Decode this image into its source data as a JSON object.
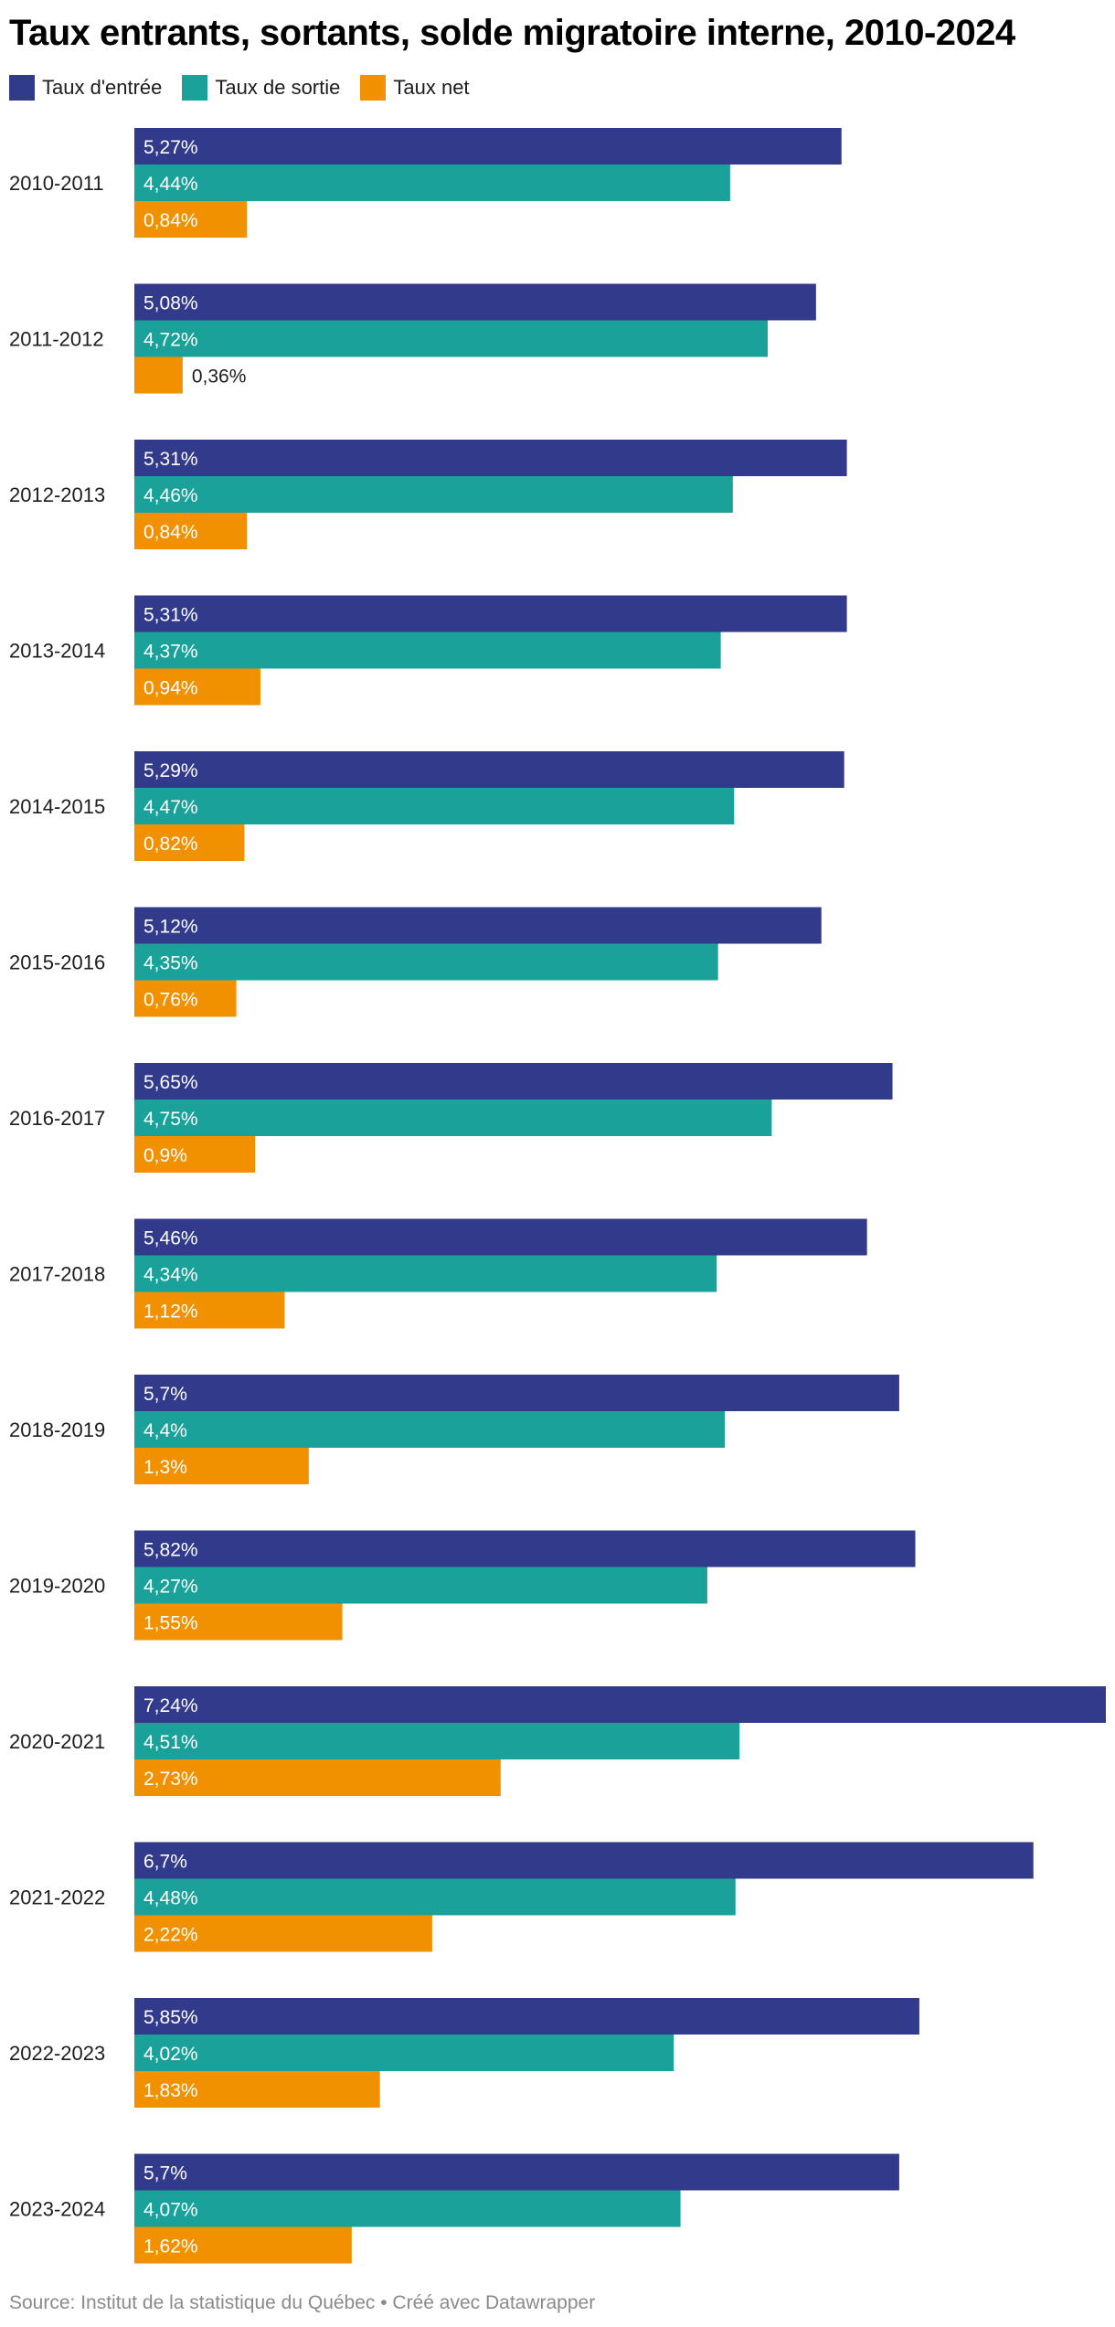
{
  "chart_data": {
    "type": "bar",
    "orientation": "horizontal",
    "title": "Taux entrants, sortants, solde migratoire interne, 2010-2024",
    "categories": [
      "2010-2011",
      "2011-2012",
      "2012-2013",
      "2013-2014",
      "2014-2015",
      "2015-2016",
      "2016-2017",
      "2017-2018",
      "2018-2019",
      "2019-2020",
      "2020-2021",
      "2021-2022",
      "2022-2023",
      "2023-2024"
    ],
    "series": [
      {
        "name": "Taux d'entrée",
        "color": "#323a8c",
        "values": [
          5.27,
          5.08,
          5.31,
          5.31,
          5.29,
          5.12,
          5.65,
          5.46,
          5.7,
          5.82,
          7.24,
          6.7,
          5.85,
          5.7
        ],
        "labels": [
          "5,27%",
          "5,08%",
          "5,31%",
          "5,31%",
          "5,29%",
          "5,12%",
          "5,65%",
          "5,46%",
          "5,7%",
          "5,82%",
          "7,24%",
          "6,7%",
          "5,85%",
          "5,7%"
        ]
      },
      {
        "name": "Taux de sortie",
        "color": "#1aa19a",
        "values": [
          4.44,
          4.72,
          4.46,
          4.37,
          4.47,
          4.35,
          4.75,
          4.34,
          4.4,
          4.27,
          4.51,
          4.48,
          4.02,
          4.07
        ],
        "labels": [
          "4,44%",
          "4,72%",
          "4,46%",
          "4,37%",
          "4,47%",
          "4,35%",
          "4,75%",
          "4,34%",
          "4,4%",
          "4,27%",
          "4,51%",
          "4,48%",
          "4,02%",
          "4,07%"
        ]
      },
      {
        "name": "Taux net",
        "color": "#f29100",
        "values": [
          0.84,
          0.36,
          0.84,
          0.94,
          0.82,
          0.76,
          0.9,
          1.12,
          1.3,
          1.55,
          2.73,
          2.22,
          1.83,
          1.62
        ],
        "labels": [
          "0,84%",
          "0,36%",
          "0,84%",
          "0,94%",
          "0,82%",
          "0,76%",
          "0,9%",
          "1,12%",
          "1,3%",
          "1,55%",
          "2,73%",
          "2,22%",
          "1,83%",
          "1,62%"
        ]
      }
    ],
    "xlim": [
      0,
      7.24
    ],
    "legend_position": "top-left",
    "grid": false,
    "source": "Source: Institut de la statistique du Québec • Créé avec Datawrapper"
  }
}
